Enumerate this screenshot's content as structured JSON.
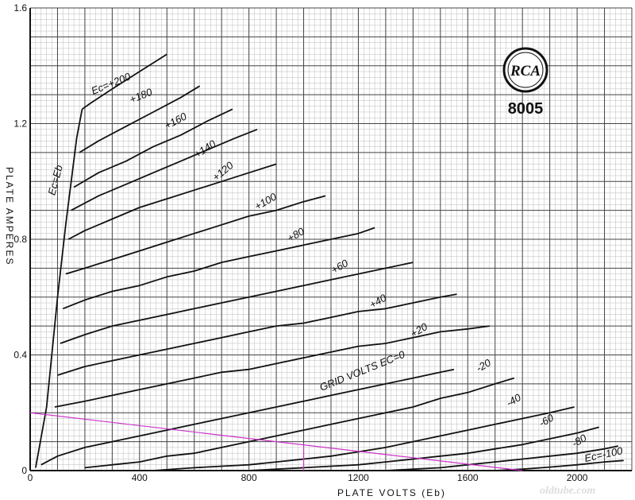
{
  "chart_data": {
    "type": "line",
    "xlabel": "PLATE VOLTS (Eb)",
    "ylabel": "PLATE AMPERES",
    "xlim": [
      0,
      2200
    ],
    "ylim": [
      0,
      1.6
    ],
    "x_ticks": [
      "0",
      "400",
      "800",
      "1200",
      "1600",
      "2000"
    ],
    "y_ticks": [
      "0",
      "0.4",
      "0.8",
      "1.2",
      "1.6"
    ],
    "x_tick_values": [
      0,
      400,
      800,
      1200,
      1600,
      2000
    ],
    "y_tick_values": [
      0,
      0.4,
      0.8,
      1.2,
      1.6
    ],
    "grid": true,
    "annotation": "GRID VOLTS EC=0",
    "logo_text": "RCA",
    "tube_type": "8005",
    "watermark": "oldtube.com",
    "series": [
      {
        "name": "Ec=+200",
        "label": "Ec=+200",
        "label_at": [
          230,
          1.3
        ],
        "label_angle": -22,
        "x": [
          190,
          220,
          300,
          400,
          500
        ],
        "y": [
          1.25,
          1.27,
          1.32,
          1.38,
          1.44
        ]
      },
      {
        "name": "+180",
        "label": "+180",
        "label_at": [
          370,
          1.27
        ],
        "label_angle": -22,
        "x": [
          180,
          250,
          350,
          450,
          550,
          620
        ],
        "y": [
          1.1,
          1.14,
          1.19,
          1.24,
          1.29,
          1.33
        ]
      },
      {
        "name": "+160",
        "label": "+160",
        "label_at": [
          500,
          1.18
        ],
        "label_angle": -28,
        "x": [
          160,
          250,
          350,
          450,
          550,
          650,
          740
        ],
        "y": [
          0.98,
          1.03,
          1.07,
          1.12,
          1.16,
          1.21,
          1.25
        ]
      },
      {
        "name": "+140",
        "label": "+140",
        "label_at": [
          610,
          1.08
        ],
        "label_angle": -33,
        "x": [
          150,
          250,
          350,
          450,
          550,
          650,
          750,
          830
        ],
        "y": [
          0.9,
          0.95,
          0.99,
          1.03,
          1.07,
          1.11,
          1.15,
          1.18
        ]
      },
      {
        "name": "+120",
        "label": "+120",
        "label_at": [
          680,
          1.0
        ],
        "label_angle": -40,
        "x": [
          140,
          200,
          300,
          400,
          500,
          600,
          700,
          800,
          900
        ],
        "y": [
          0.8,
          0.83,
          0.87,
          0.91,
          0.94,
          0.97,
          1.0,
          1.03,
          1.06
        ]
      },
      {
        "name": "+100",
        "label": "+100",
        "label_at": [
          830,
          0.9
        ],
        "label_angle": -30,
        "x": [
          130,
          200,
          300,
          400,
          500,
          600,
          700,
          800,
          900,
          1000,
          1080
        ],
        "y": [
          0.68,
          0.7,
          0.73,
          0.76,
          0.79,
          0.82,
          0.85,
          0.88,
          0.9,
          0.93,
          0.95
        ]
      },
      {
        "name": "+80",
        "label": "+80",
        "label_at": [
          950,
          0.79
        ],
        "label_angle": -30,
        "x": [
          120,
          200,
          300,
          400,
          500,
          600,
          700,
          800,
          900,
          1000,
          1100,
          1200,
          1260
        ],
        "y": [
          0.56,
          0.59,
          0.62,
          0.64,
          0.67,
          0.69,
          0.72,
          0.74,
          0.76,
          0.78,
          0.8,
          0.82,
          0.84
        ]
      },
      {
        "name": "+60",
        "label": "+60",
        "label_at": [
          1110,
          0.68
        ],
        "label_angle": -30,
        "x": [
          110,
          200,
          300,
          400,
          500,
          600,
          700,
          800,
          900,
          1000,
          1100,
          1200,
          1300,
          1400
        ],
        "y": [
          0.44,
          0.47,
          0.5,
          0.52,
          0.54,
          0.56,
          0.58,
          0.6,
          0.62,
          0.64,
          0.66,
          0.68,
          0.7,
          0.72
        ]
      },
      {
        "name": "+40",
        "label": "+40",
        "label_at": [
          1250,
          0.56
        ],
        "label_angle": -30,
        "x": [
          100,
          200,
          300,
          400,
          500,
          600,
          700,
          800,
          900,
          1000,
          1100,
          1200,
          1300,
          1400,
          1500,
          1560
        ],
        "y": [
          0.33,
          0.36,
          0.38,
          0.4,
          0.42,
          0.44,
          0.46,
          0.48,
          0.5,
          0.51,
          0.53,
          0.55,
          0.56,
          0.58,
          0.6,
          0.61
        ]
      },
      {
        "name": "+20",
        "label": "+20",
        "label_at": [
          1400,
          0.46
        ],
        "label_angle": -30,
        "x": [
          90,
          200,
          300,
          400,
          500,
          600,
          700,
          800,
          900,
          1000,
          1100,
          1200,
          1300,
          1400,
          1500,
          1600,
          1680
        ],
        "y": [
          0.22,
          0.24,
          0.26,
          0.28,
          0.3,
          0.32,
          0.34,
          0.35,
          0.37,
          0.39,
          0.41,
          0.43,
          0.44,
          0.46,
          0.48,
          0.49,
          0.5
        ]
      },
      {
        "name": "Ec=0",
        "label": "",
        "label_at": [
          1300,
          0.4
        ],
        "label_angle": 0,
        "x": [
          40,
          100,
          200,
          300,
          400,
          500,
          600,
          700,
          800,
          900,
          1000,
          1100,
          1200,
          1300,
          1400,
          1500,
          1550
        ],
        "y": [
          0.02,
          0.05,
          0.08,
          0.1,
          0.12,
          0.14,
          0.16,
          0.18,
          0.2,
          0.22,
          0.24,
          0.26,
          0.28,
          0.3,
          0.32,
          0.34,
          0.35
        ]
      },
      {
        "name": "-20",
        "label": "-20",
        "label_at": [
          1640,
          0.34
        ],
        "label_angle": -30,
        "x": [
          200,
          300,
          400,
          500,
          600,
          700,
          800,
          900,
          1000,
          1100,
          1200,
          1300,
          1400,
          1500,
          1600,
          1700,
          1770
        ],
        "y": [
          0.01,
          0.02,
          0.03,
          0.05,
          0.06,
          0.08,
          0.1,
          0.12,
          0.14,
          0.16,
          0.18,
          0.2,
          0.22,
          0.25,
          0.27,
          0.3,
          0.32
        ]
      },
      {
        "name": "-40",
        "label": "-40",
        "label_at": [
          1750,
          0.22
        ],
        "label_angle": -30,
        "x": [
          450,
          600,
          700,
          800,
          900,
          1000,
          1100,
          1200,
          1300,
          1400,
          1500,
          1600,
          1700,
          1800,
          1900,
          1990
        ],
        "y": [
          0.0,
          0.01,
          0.015,
          0.02,
          0.03,
          0.04,
          0.05,
          0.065,
          0.08,
          0.1,
          0.12,
          0.14,
          0.16,
          0.18,
          0.2,
          0.22
        ]
      },
      {
        "name": "-60",
        "label": "-60",
        "label_at": [
          1870,
          0.15
        ],
        "label_angle": -30,
        "x": [
          800,
          1000,
          1100,
          1200,
          1300,
          1400,
          1500,
          1600,
          1700,
          1800,
          1900,
          2000,
          2080
        ],
        "y": [
          0.0,
          0.01,
          0.015,
          0.02,
          0.03,
          0.04,
          0.05,
          0.06,
          0.075,
          0.09,
          0.11,
          0.13,
          0.15
        ]
      },
      {
        "name": "-80",
        "label": "-80",
        "label_at": [
          1990,
          0.08
        ],
        "label_angle": -30,
        "x": [
          1300,
          1400,
          1500,
          1600,
          1700,
          1800,
          1900,
          2000,
          2100,
          2150
        ],
        "y": [
          0.0,
          0.005,
          0.01,
          0.02,
          0.03,
          0.04,
          0.05,
          0.06,
          0.075,
          0.085
        ]
      },
      {
        "name": "Ec=-100",
        "label": "Ec=-100",
        "label_at": [
          2030,
          0.03
        ],
        "label_angle": -12,
        "x": [
          1700,
          1800,
          1900,
          2000,
          2100,
          2170
        ],
        "y": [
          0.0,
          0.005,
          0.012,
          0.02,
          0.03,
          0.035
        ]
      },
      {
        "name": "Ec=Eb",
        "label": "Ec=Eb",
        "label_at": [
          90,
          0.95
        ],
        "label_angle": -75,
        "x": [
          20,
          60,
          100,
          130,
          150,
          170,
          190
        ],
        "y": [
          0.01,
          0.22,
          0.6,
          0.85,
          1.0,
          1.15,
          1.25
        ]
      }
    ],
    "load_line": {
      "x": [
        0,
        1800
      ],
      "y": [
        0.2,
        0.0
      ],
      "color": "#cc33cc"
    },
    "operating_point": {
      "x": 1000,
      "y": 0.09,
      "color": "#cc33cc"
    }
  }
}
